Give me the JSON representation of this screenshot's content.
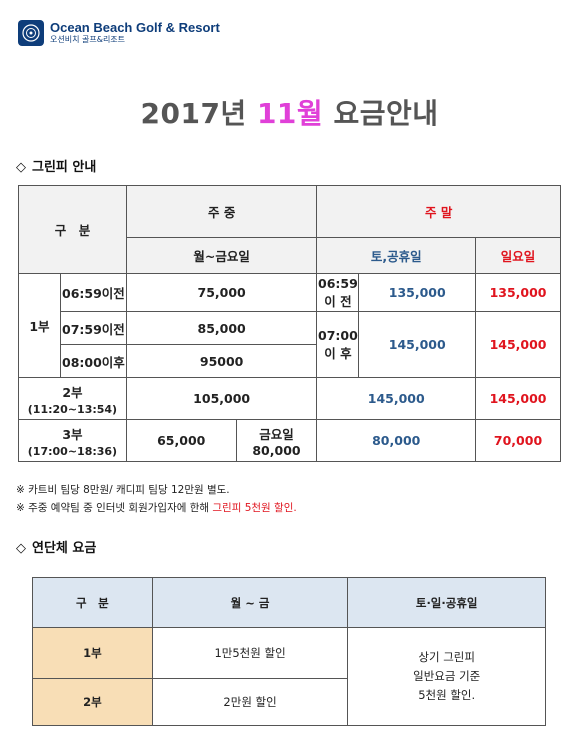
{
  "logo": {
    "name": "Ocean Beach Golf & Resort",
    "subtitle": "오션비치 골프&리조트"
  },
  "title": {
    "year": "2017년",
    "month": "11월",
    "suffix": "요금안내"
  },
  "section1": {
    "bullet": "◇",
    "label": "그린피 안내"
  },
  "fee_table": {
    "gubun": "구　분",
    "weekday": "주 중",
    "weekend": "주 말",
    "mon_fri": "월~금요일",
    "sat_hol": "토,공휴일",
    "sunday": "일요일",
    "part1": "1부",
    "rows": [
      {
        "time": "06:59이전",
        "weekday": "75,000"
      },
      {
        "time": "07:59이전",
        "weekday": "85,000"
      },
      {
        "time": "08:00이후",
        "weekday": "95000"
      }
    ],
    "wk_before_a": "06:59",
    "wk_before_b": "이 전",
    "wk_after_a": "07:00",
    "wk_after_b": "이 후",
    "sat_before": "135,000",
    "sun_before": "135,000",
    "sat_after": "145,000",
    "sun_after": "145,000",
    "part2": "2부",
    "part2_time": "(11:20~13:54)",
    "part2_weekday": "105,000",
    "part2_sat": "145,000",
    "part2_sun": "145,000",
    "part3": "3부",
    "part3_time": "(17:00~18:36)",
    "part3_weekday": "65,000",
    "part3_fri_label": "금요일",
    "part3_fri": "80,000",
    "part3_sat": "80,000",
    "part3_sun": "70,000"
  },
  "notes": {
    "note1": "※ 카트비 팀당 8만원/ 캐디피 팀당 12만원 별도.",
    "note2_prefix": "※ 주중 예약팀 중 인터넷 회원가입자에 한해 ",
    "note2_highlight": "그린피 5천원 할인."
  },
  "section2": {
    "bullet": "◇",
    "label": "연단체 요금"
  },
  "group_table": {
    "gubun": "구　분",
    "mon_fri": "월 ~ 금",
    "weekend": "토·일·공휴일",
    "part1": "1부",
    "part1_discount": "1만5천원 할인",
    "part2": "2부",
    "part2_discount": "2만원 할인",
    "weekend_line1": "상기 그린피",
    "weekend_line2": "일반요금 기준",
    "weekend_line3": "5천원 할인."
  }
}
